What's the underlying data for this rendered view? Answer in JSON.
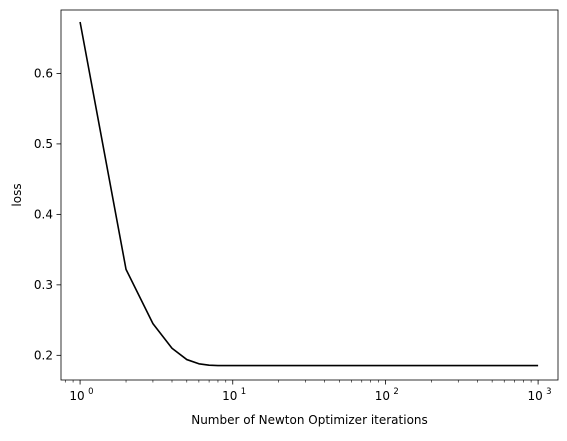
{
  "chart_data": {
    "type": "line",
    "title": "",
    "xlabel": "Number of Newton Optimizer iterations",
    "ylabel": "loss",
    "xscale": "log",
    "xlim": [
      0.75,
      1350
    ],
    "ylim": [
      0.165,
      0.69
    ],
    "grid": false,
    "legend": "none",
    "x_ticks": [
      {
        "value": 1,
        "base": "10",
        "exp": "0"
      },
      {
        "value": 10,
        "base": "10",
        "exp": "1"
      },
      {
        "value": 100,
        "base": "10",
        "exp": "2"
      },
      {
        "value": 1000,
        "base": "10",
        "exp": "3"
      }
    ],
    "y_ticks": [
      {
        "value": 0.2,
        "label": "0.2"
      },
      {
        "value": 0.3,
        "label": "0.3"
      },
      {
        "value": 0.4,
        "label": "0.4"
      },
      {
        "value": 0.5,
        "label": "0.5"
      },
      {
        "value": 0.6,
        "label": "0.6"
      }
    ],
    "series": [
      {
        "color": "#000000",
        "x": [
          1,
          2,
          3,
          4,
          5,
          6,
          7,
          8,
          10,
          20,
          50,
          100,
          200,
          500,
          1000
        ],
        "y": [
          0.673,
          0.322,
          0.245,
          0.21,
          0.194,
          0.188,
          0.186,
          0.1855,
          0.1855,
          0.1855,
          0.1855,
          0.1855,
          0.1855,
          0.1855,
          0.1855
        ]
      }
    ]
  }
}
